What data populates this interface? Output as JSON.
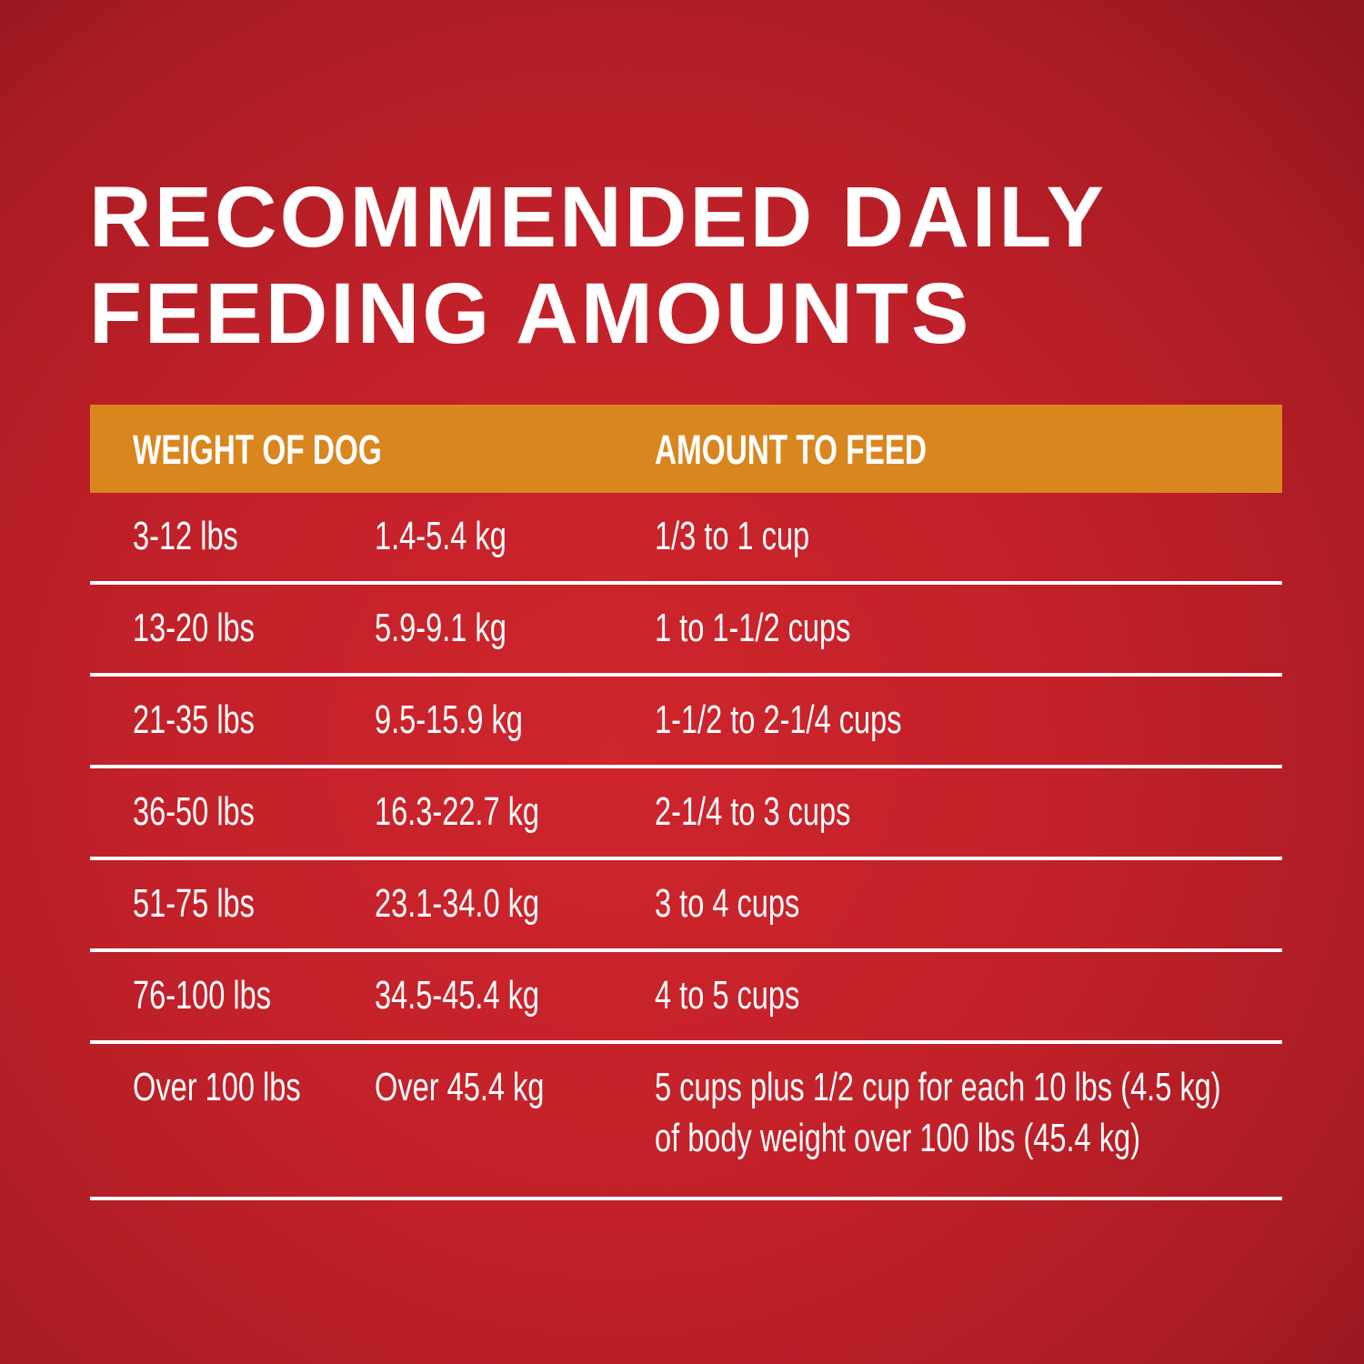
{
  "title": {
    "line1": "RECOMMENDED DAILY",
    "line2": "FEEDING AMOUNTS"
  },
  "colors": {
    "background": "#c2212a",
    "header": "#d9861f",
    "text": "#ffffff"
  },
  "table": {
    "headers": [
      "WEIGHT OF DOG",
      "AMOUNT TO FEED"
    ],
    "rows": [
      {
        "lbs": "3-12 lbs",
        "kg": "1.4-5.4 kg",
        "amount": "1/3 to 1 cup"
      },
      {
        "lbs": "13-20 lbs",
        "kg": "5.9-9.1 kg",
        "amount": "1 to 1-1/2 cups"
      },
      {
        "lbs": "21-35 lbs",
        "kg": "9.5-15.9 kg",
        "amount": "1-1/2 to 2-1/4 cups"
      },
      {
        "lbs": "36-50 lbs",
        "kg": "16.3-22.7 kg",
        "amount": "2-1/4 to 3 cups"
      },
      {
        "lbs": "51-75 lbs",
        "kg": "23.1-34.0 kg",
        "amount": "3 to 4 cups"
      },
      {
        "lbs": "76-100 lbs",
        "kg": "34.5-45.4 kg",
        "amount": "4 to 5 cups"
      },
      {
        "lbs": "Over 100 lbs",
        "kg": "Over 45.4 kg",
        "amount": "5 cups plus 1/2 cup for each 10 lbs (4.5 kg)",
        "amount_line2": "of body weight over 100 lbs (45.4 kg)"
      }
    ]
  }
}
